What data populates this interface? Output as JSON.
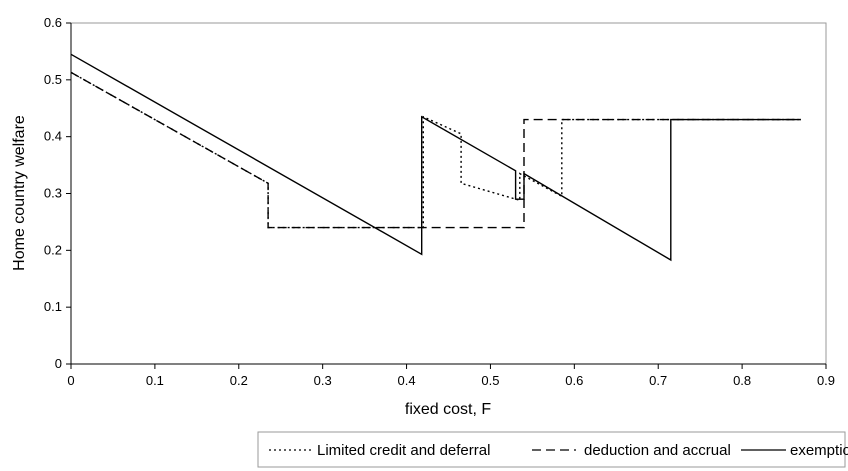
{
  "chart_data": {
    "type": "line",
    "xlabel": "fixed cost, F",
    "ylabel": "Home country welfare",
    "xlim": [
      0,
      0.9
    ],
    "ylim": [
      0,
      0.6
    ],
    "xticks": [
      0,
      0.1,
      0.2,
      0.3,
      0.4,
      0.5,
      0.6,
      0.7,
      0.8,
      0.9
    ],
    "xtick_labels": [
      "0",
      "0.1",
      "0.2",
      "0.3",
      "0.4",
      "0.5",
      "0.6",
      "0.7",
      "0.8",
      "0.9"
    ],
    "yticks": [
      0,
      0.1,
      0.2,
      0.3,
      0.4,
      0.5,
      0.6
    ],
    "ytick_labels": [
      "0",
      "0.1",
      "0.2",
      "0.3",
      "0.4",
      "0.5",
      "0.6"
    ],
    "grid": false,
    "legend_position": "bottom",
    "series": [
      {
        "name": "Limited credit and deferral",
        "style": "dotted",
        "color": "#000000",
        "x": [
          0,
          0.235,
          0.235,
          0.42,
          0.42,
          0.465,
          0.465,
          0.535,
          0.535,
          0.585,
          0.585,
          0.87
        ],
        "y": [
          0.513,
          0.318,
          0.24,
          0.24,
          0.435,
          0.405,
          0.318,
          0.288,
          0.335,
          0.295,
          0.43,
          0.43
        ]
      },
      {
        "name": "deduction and accrual",
        "style": "dashed",
        "color": "#000000",
        "x": [
          0,
          0.235,
          0.235,
          0.54,
          0.54,
          0.87
        ],
        "y": [
          0.513,
          0.318,
          0.24,
          0.24,
          0.43,
          0.43
        ]
      },
      {
        "name": "exemption",
        "style": "solid",
        "color": "#000000",
        "x": [
          0,
          0.418,
          0.418,
          0.53,
          0.53,
          0.54,
          0.54,
          0.715,
          0.715,
          0.87
        ],
        "y": [
          0.545,
          0.193,
          0.435,
          0.34,
          0.29,
          0.29,
          0.335,
          0.183,
          0.43,
          0.43
        ]
      }
    ]
  }
}
